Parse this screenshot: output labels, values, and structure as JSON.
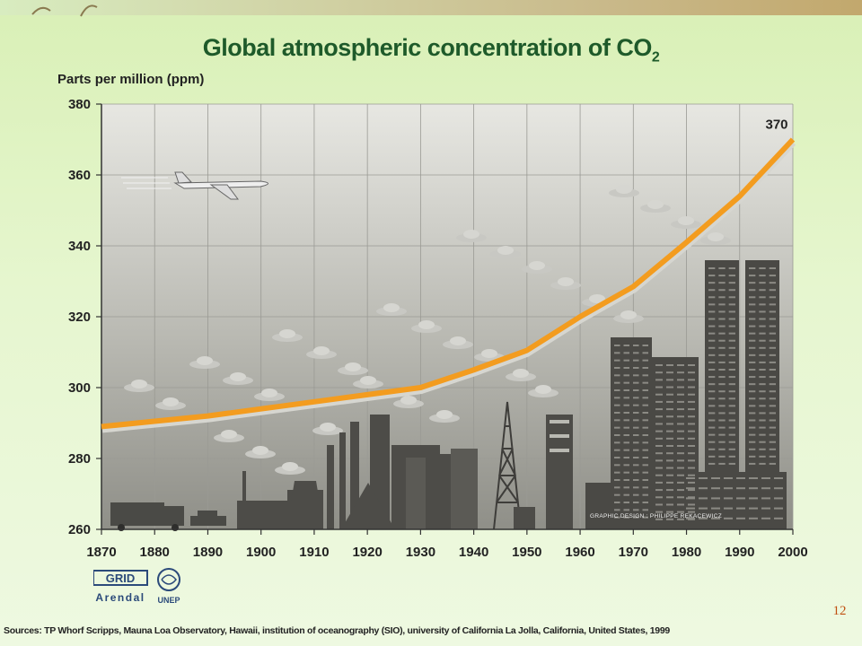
{
  "slide": {
    "title_main": "Global atmospheric concentration of CO",
    "title_sub": "2",
    "page_number": "12",
    "sources": "Sources: TP Whorf  Scripps, Mauna Loa Observatory, Hawaii, institution of oceanography (SIO), university of California La Jolla, California, United States, 1999",
    "logos": {
      "grid": "GRID",
      "arendal": "Arendal",
      "unep": "UNEP"
    },
    "credit": "GRAPHIC DESIGN : PHILIPPE REKACEWICZ"
  },
  "chart_data": {
    "type": "line",
    "title": "Global atmospheric concentration of CO2",
    "ylabel": "Parts per million (ppm)",
    "xlabel": "",
    "x": [
      1870,
      1880,
      1890,
      1900,
      1910,
      1920,
      1930,
      1940,
      1950,
      1960,
      1970,
      1980,
      1990,
      2000
    ],
    "series": [
      {
        "values": [
          289,
          290.5,
          292,
          294,
          296,
          298,
          300,
          305,
          310.5,
          320,
          328.5,
          341,
          354,
          370
        ],
        "color": "#f39c1f"
      }
    ],
    "xlim": [
      1870,
      2000
    ],
    "ylim": [
      260,
      380
    ],
    "x_ticks": [
      "1870",
      "1880",
      "1890",
      "1900",
      "1910",
      "1920",
      "1930",
      "1940",
      "1950",
      "1960",
      "1970",
      "1980",
      "1990",
      "2000"
    ],
    "y_ticks": [
      "260",
      "280",
      "300",
      "320",
      "340",
      "360",
      "380"
    ],
    "annotations": [
      {
        "x": 2000,
        "y": 370,
        "text": "370"
      }
    ],
    "grid": true
  }
}
